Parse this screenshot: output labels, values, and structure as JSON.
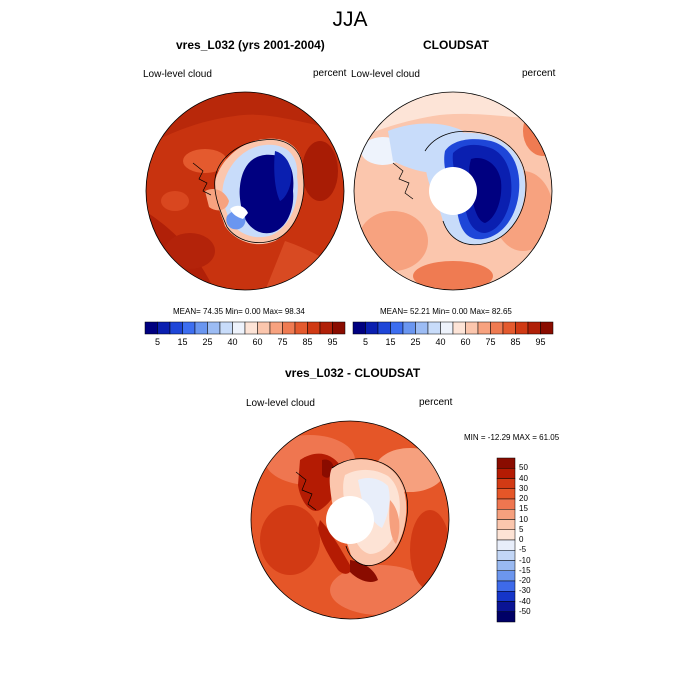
{
  "figure": {
    "title": "JJA"
  },
  "panels": [
    {
      "title": "vres_L032 (yrs 2001-2004)",
      "left_label": "Low-level cloud",
      "right_label": "percent",
      "stats": "MEAN=  74.35  Min=   0.00  Max=  98.34"
    },
    {
      "title": "CLOUDSAT",
      "left_label": "Low-level cloud",
      "right_label": "percent",
      "stats": "MEAN=  52.21  Min=   0.00  Max=  82.65"
    },
    {
      "title": "vres_L032 - CLOUDSAT",
      "left_label": "Low-level cloud",
      "right_label": "percent",
      "stats": "MIN = -12.29 MAX =  61.05"
    }
  ],
  "colorbar_top": {
    "tick_labels": [
      "5",
      "15",
      "25",
      "40",
      "60",
      "75",
      "85",
      "95"
    ],
    "colors": [
      "#000080",
      "#0a1fb0",
      "#1e46d8",
      "#3d6ef0",
      "#6a96f0",
      "#9cbcf4",
      "#c8dcfa",
      "#eef3fc",
      "#fde4d7",
      "#fbc6ad",
      "#f7a27f",
      "#ef7b52",
      "#e45a2e",
      "#d03a14",
      "#b02008",
      "#8a0c00"
    ]
  },
  "colorbar_diff": {
    "tick_labels": [
      "50",
      "40",
      "30",
      "20",
      "15",
      "10",
      "5",
      "0",
      "-5",
      "-10",
      "-15",
      "-20",
      "-30",
      "-40",
      "-50"
    ],
    "colors": [
      "#8a0c00",
      "#b41b03",
      "#d23a14",
      "#e55628",
      "#ef7650",
      "#f6a07e",
      "#fbc6ad",
      "#fde3d5",
      "#e8eefa",
      "#c2d6f6",
      "#99b9f1",
      "#6c96ee",
      "#3e6aea",
      "#1535c8",
      "#0a1494",
      "#000066"
    ]
  }
}
